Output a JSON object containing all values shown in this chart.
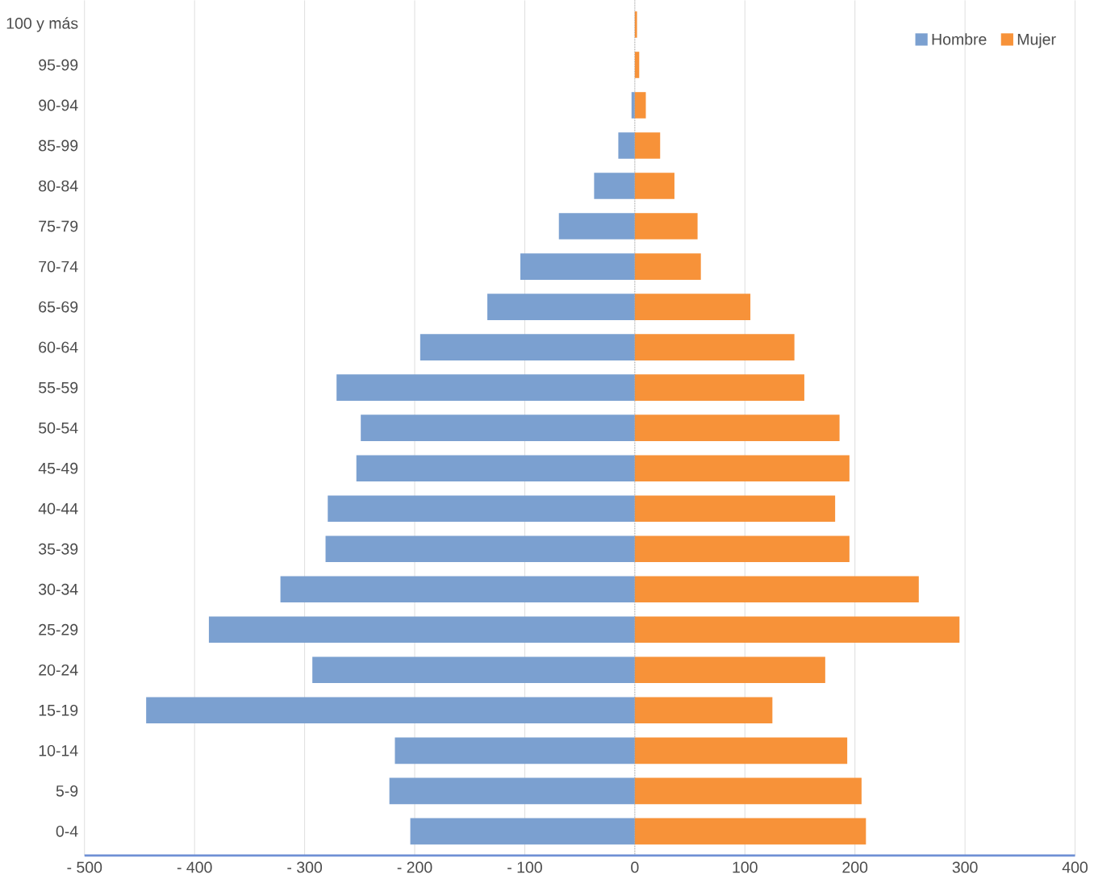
{
  "chart_data": {
    "type": "bar",
    "orientation": "horizontal",
    "categories": [
      "100 y más",
      "95-99",
      "90-94",
      "85-99",
      "80-84",
      "75-79",
      "70-74",
      "65-69",
      "60-64",
      "55-59",
      "50-54",
      "45-49",
      "40-44",
      "35-39",
      "30-34",
      "25-29",
      "20-24",
      "15-19",
      "10-14",
      "5-9",
      "0-4"
    ],
    "series": [
      {
        "name": "Hombre",
        "color": "#7ba0d0",
        "values": [
          0,
          0,
          -3,
          -15,
          -37,
          -69,
          -104,
          -134,
          -195,
          -271,
          -249,
          -253,
          -279,
          -281,
          -322,
          -387,
          -293,
          -444,
          -218,
          -223,
          -204
        ]
      },
      {
        "name": "Mujer",
        "color": "#f79239",
        "values": [
          2,
          4,
          10,
          23,
          36,
          57,
          60,
          105,
          145,
          154,
          186,
          195,
          182,
          195,
          258,
          295,
          173,
          125,
          193,
          206,
          210
        ]
      }
    ],
    "xlim": [
      -500,
      400
    ],
    "xticks": [
      {
        "value": -500,
        "label": "- 500"
      },
      {
        "value": -400,
        "label": "- 400"
      },
      {
        "value": -300,
        "label": "- 300"
      },
      {
        "value": -200,
        "label": "- 200"
      },
      {
        "value": -100,
        "label": "- 100"
      },
      0,
      100,
      200,
      300,
      400
    ],
    "grid": "x",
    "legend": "top right",
    "stacked": true,
    "ref_lines": [
      {
        "axis": "x",
        "value": 0,
        "color": "#999999",
        "line_style": "dotted"
      }
    ]
  }
}
